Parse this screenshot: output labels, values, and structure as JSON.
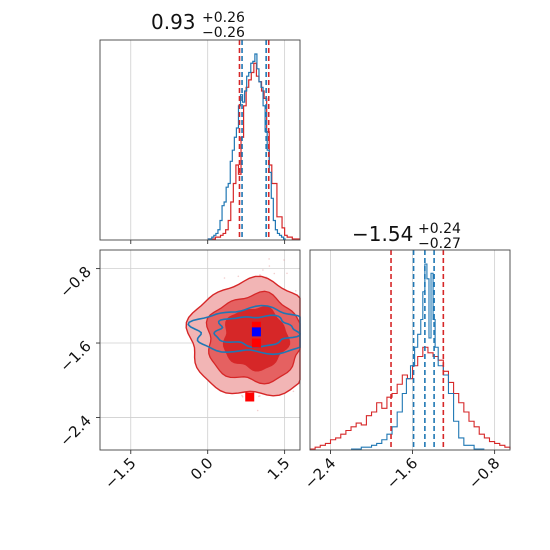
{
  "chart_data": {
    "type": "corner",
    "colors": {
      "red": "#d62728",
      "blue": "#1f77b4",
      "red_fill_light": "#f2b5b5",
      "red_fill_mid": "#e56161",
      "red_fill_dark": "#d62728",
      "marker_blue": "#0000ff",
      "marker_red": "#ff0000",
      "grid": "#cfcfcf"
    },
    "param1": {
      "title": {
        "median": "0.93",
        "plus": "+0.26",
        "minus": "−0.26"
      },
      "xlim": [
        -2.1,
        1.8
      ],
      "xticks": [
        -1.5,
        0.0,
        1.5
      ],
      "xtick_labels": [
        "−1.5",
        "0.0",
        "1.5"
      ],
      "quantiles": {
        "red": [
          0.62,
          1.19
        ],
        "blue": [
          0.67,
          1.14
        ],
        "red_median_line": 0.95,
        "blue_median_line": 0.92
      },
      "red_hist": {
        "x": [
          0.0,
          0.05,
          0.1,
          0.15,
          0.2,
          0.25,
          0.3,
          0.35,
          0.4,
          0.45,
          0.5,
          0.55,
          0.6,
          0.65,
          0.7,
          0.75,
          0.8,
          0.85,
          0.9,
          0.95,
          1.0,
          1.05,
          1.1,
          1.15,
          1.2,
          1.25,
          1.3,
          1.35,
          1.4,
          1.45,
          1.5,
          1.55,
          1.6,
          1.65,
          1.7,
          1.75
        ],
        "y": [
          0.0,
          0.0,
          0.0,
          0.01,
          0.01,
          0.02,
          0.03,
          0.05,
          0.1,
          0.2,
          0.3,
          0.4,
          0.35,
          0.55,
          0.72,
          0.82,
          0.86,
          0.9,
          0.95,
          0.88,
          0.85,
          0.8,
          0.76,
          0.58,
          0.4,
          0.3,
          0.3,
          0.12,
          0.12,
          0.06,
          0.02,
          0.01,
          0.01,
          0.0,
          0.0,
          0.0
        ]
      },
      "blue_hist": {
        "x": [
          0.0,
          0.04,
          0.08,
          0.12,
          0.16,
          0.2,
          0.24,
          0.28,
          0.32,
          0.36,
          0.4,
          0.44,
          0.48,
          0.52,
          0.56,
          0.6,
          0.64,
          0.68,
          0.72,
          0.76,
          0.8,
          0.84,
          0.88,
          0.92,
          0.96,
          1.0,
          1.04,
          1.08,
          1.12,
          1.16,
          1.2,
          1.24,
          1.28,
          1.32,
          1.36,
          1.4,
          1.44,
          1.48
        ],
        "y": [
          0.0,
          0.0,
          0.01,
          0.02,
          0.03,
          0.05,
          0.1,
          0.18,
          0.2,
          0.28,
          0.3,
          0.42,
          0.48,
          0.55,
          0.6,
          0.72,
          0.78,
          0.74,
          0.8,
          0.88,
          0.9,
          0.95,
          0.96,
          1.0,
          0.92,
          0.85,
          0.82,
          0.72,
          0.58,
          0.48,
          0.36,
          0.22,
          0.1,
          0.05,
          0.03,
          0.02,
          0.01,
          0.0
        ]
      }
    },
    "param2": {
      "title": {
        "median": "−1.54",
        "plus": "+0.24",
        "minus": "−0.27"
      },
      "xlim": [
        -2.6,
        -0.65
      ],
      "xticks": [
        -2.4,
        -1.6,
        -0.8
      ],
      "xtick_labels": [
        "−2.4",
        "−1.6",
        "−0.8"
      ],
      "quantiles": {
        "red": [
          -1.81,
          -1.3
        ],
        "blue": [
          -1.59,
          -1.39
        ],
        "blue_median_line": -1.48
      },
      "red_hist": {
        "x": [
          -2.6,
          -2.55,
          -2.5,
          -2.45,
          -2.4,
          -2.35,
          -2.3,
          -2.25,
          -2.2,
          -2.15,
          -2.1,
          -2.05,
          -2.0,
          -1.95,
          -1.9,
          -1.85,
          -1.8,
          -1.75,
          -1.7,
          -1.65,
          -1.6,
          -1.55,
          -1.5,
          -1.45,
          -1.4,
          -1.35,
          -1.3,
          -1.25,
          -1.2,
          -1.15,
          -1.1,
          -1.05,
          -1.0,
          -0.95,
          -0.9,
          -0.85,
          -0.8,
          -0.75,
          -0.7
        ],
        "y": [
          0.0,
          0.01,
          0.02,
          0.03,
          0.05,
          0.06,
          0.08,
          0.1,
          0.12,
          0.14,
          0.13,
          0.18,
          0.2,
          0.25,
          0.22,
          0.28,
          0.3,
          0.35,
          0.4,
          0.38,
          0.45,
          0.5,
          0.55,
          0.52,
          0.5,
          0.48,
          0.42,
          0.36,
          0.3,
          0.25,
          0.2,
          0.15,
          0.12,
          0.08,
          0.06,
          0.04,
          0.03,
          0.02,
          0.01
        ]
      },
      "blue_hist": {
        "x": [
          -2.2,
          -2.1,
          -2.0,
          -1.95,
          -1.9,
          -1.85,
          -1.8,
          -1.75,
          -1.7,
          -1.66,
          -1.62,
          -1.58,
          -1.55,
          -1.52,
          -1.5,
          -1.48,
          -1.46,
          -1.44,
          -1.42,
          -1.4,
          -1.38,
          -1.35,
          -1.3,
          -1.25,
          -1.2,
          -1.15,
          -1.1,
          -1.0
        ],
        "y": [
          0.0,
          0.01,
          0.02,
          0.03,
          0.05,
          0.08,
          0.12,
          0.2,
          0.3,
          0.38,
          0.45,
          0.55,
          0.62,
          0.7,
          0.85,
          1.0,
          0.92,
          0.6,
          0.95,
          0.7,
          0.55,
          0.45,
          0.4,
          0.3,
          0.15,
          0.06,
          0.02,
          0.0
        ]
      }
    },
    "joint": {
      "xlim": [
        -2.1,
        1.8
      ],
      "ylim": [
        -2.75,
        -0.6
      ],
      "yticks": [
        -2.4,
        -1.6,
        -0.8
      ],
      "ytick_labels": [
        "−2.4",
        "−1.6",
        "−0.8"
      ],
      "markers": {
        "blue_point": [
          0.95,
          -1.48
        ],
        "red_points": [
          [
            0.95,
            -1.42
          ],
          [
            0.95,
            -1.6
          ],
          [
            0.82,
            -2.18
          ]
        ]
      },
      "red_contour_levels": 3,
      "blue_contour_levels": 2
    }
  }
}
